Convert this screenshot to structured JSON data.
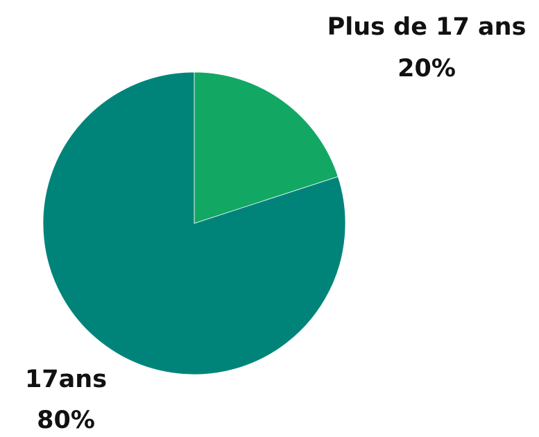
{
  "chart_data": {
    "type": "pie",
    "categories": [
      "Plus de 17 ans",
      "17ans"
    ],
    "values": [
      20,
      80
    ],
    "value_labels": [
      "20%",
      "80%"
    ],
    "colors": [
      "#12a864",
      "#00847a"
    ]
  }
}
